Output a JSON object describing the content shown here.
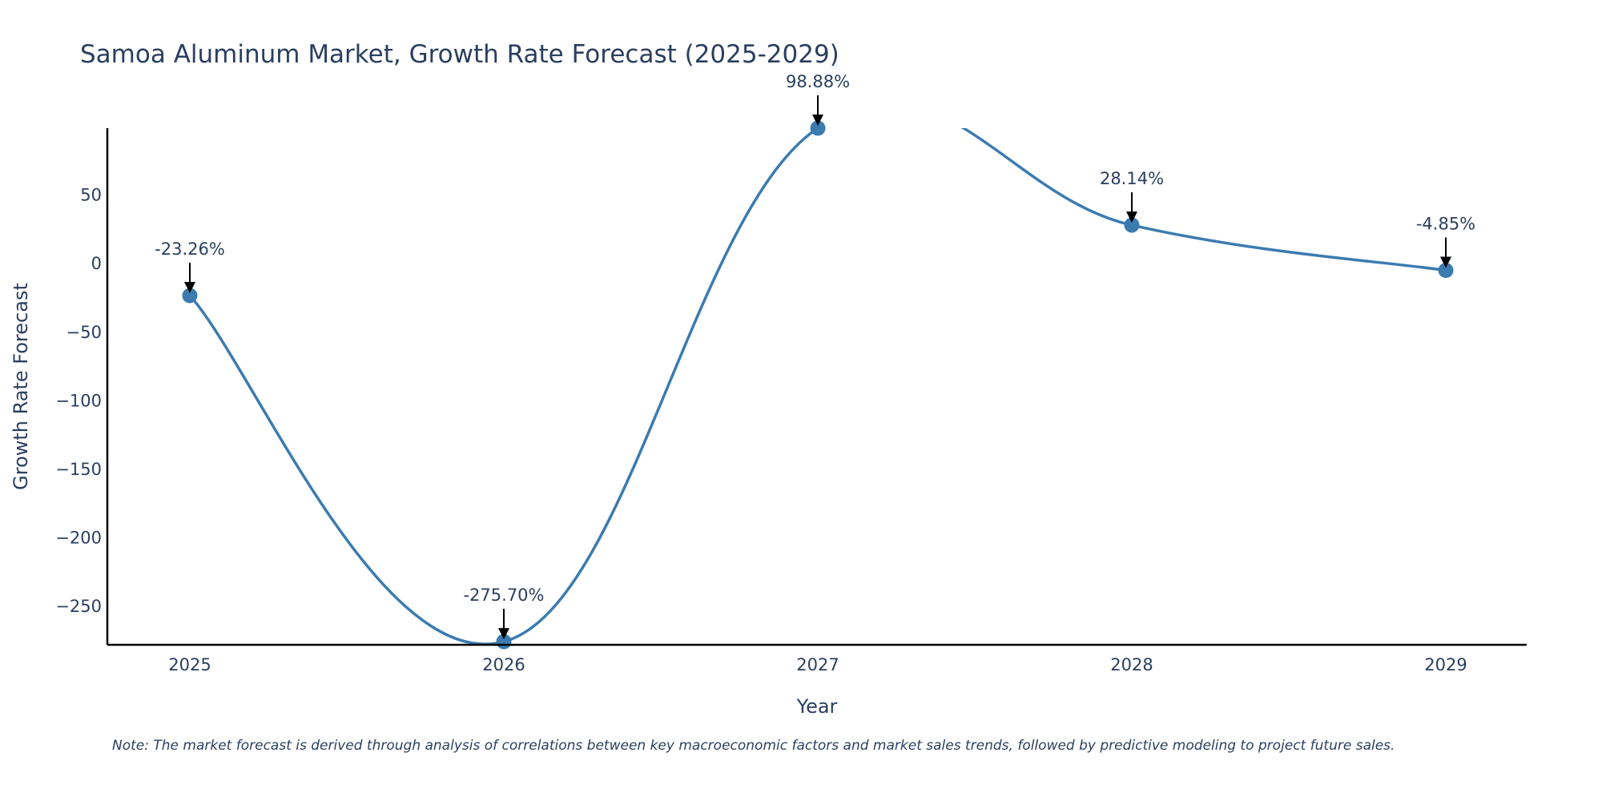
{
  "chart_data": {
    "type": "line",
    "title": "Samoa Aluminum Market, Growth Rate Forecast (2025-2029)",
    "xlabel": "Year",
    "ylabel": "Growth Rate Forecast",
    "categories": [
      "2025",
      "2026",
      "2027",
      "2028",
      "2029"
    ],
    "series": [
      {
        "name": "Growth Rate Forecast",
        "values": [
          -23.26,
          -275.7,
          98.88,
          28.14,
          -4.85
        ],
        "labels": [
          "-23.26%",
          "-275.70%",
          "98.88%",
          "28.14%",
          "-4.85%"
        ]
      }
    ],
    "yticks": [
      50,
      0,
      -50,
      -100,
      -150,
      -200,
      -250
    ],
    "ytick_labels": [
      "50",
      "0",
      "−50",
      "−100",
      "−150",
      "−200",
      "−250"
    ],
    "ylim": [
      -278,
      98.88
    ],
    "grid": false,
    "line_color": "#3b7bb0",
    "note": "Note: The market forecast is derived through analysis of correlations between key macroeconomic factors and market sales trends, followed by predictive modeling to project future sales."
  }
}
